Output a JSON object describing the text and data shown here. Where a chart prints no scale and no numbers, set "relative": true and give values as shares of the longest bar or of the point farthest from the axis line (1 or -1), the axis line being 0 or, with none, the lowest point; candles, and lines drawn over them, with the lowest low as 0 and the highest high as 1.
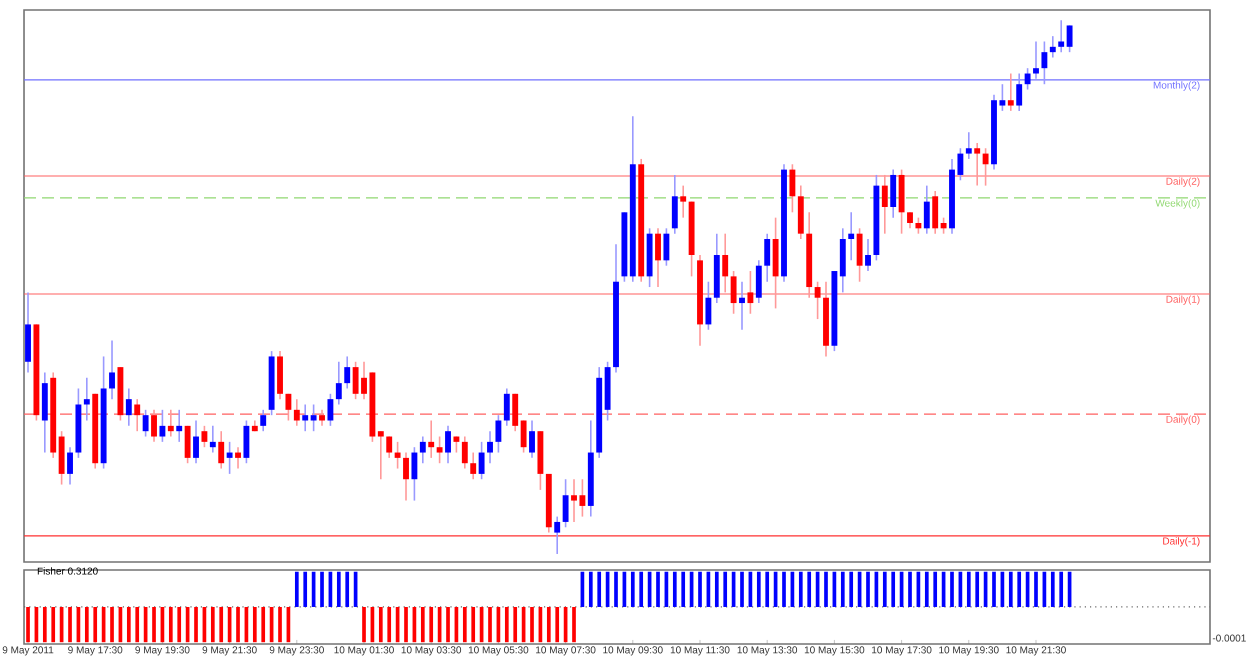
{
  "chart_data": [
    {
      "type": "candlestick",
      "relative": true,
      "tick_labels": false,
      "categories": [
        null,
        null,
        null,
        null,
        null,
        null,
        null,
        null,
        null,
        null,
        null,
        null,
        null,
        null,
        null,
        null,
        null,
        null,
        null,
        null,
        null,
        null,
        null,
        null,
        null,
        null,
        null,
        null,
        null,
        null,
        null,
        null,
        null,
        null,
        null,
        null,
        null,
        null,
        null,
        null,
        null,
        null,
        null,
        null,
        null,
        null,
        null,
        null,
        null,
        null,
        null,
        null,
        null,
        null,
        null,
        null,
        null,
        null,
        null,
        null,
        null,
        null,
        null,
        null,
        null,
        null,
        null,
        null,
        null,
        null,
        null,
        null,
        null,
        null,
        null,
        null,
        null,
        null,
        null,
        null,
        null,
        null,
        null,
        null,
        null,
        null,
        null,
        null,
        null,
        null,
        null,
        null,
        null,
        null,
        null,
        null,
        null,
        null,
        null,
        null,
        null,
        null,
        null,
        null,
        null,
        null,
        null,
        null,
        null,
        null,
        null,
        null,
        null,
        null,
        null,
        null,
        null,
        null,
        null,
        null,
        null,
        null,
        null,
        null,
        null
      ],
      "ohlc": [
        [
          0.36,
          0.49,
          0.34,
          0.43
        ],
        [
          0.43,
          0.43,
          0.25,
          0.26
        ],
        [
          0.25,
          0.34,
          0.19,
          0.32
        ],
        [
          0.33,
          0.34,
          0.18,
          0.19
        ],
        [
          0.22,
          0.23,
          0.13,
          0.15
        ],
        [
          0.15,
          0.2,
          0.13,
          0.19
        ],
        [
          0.19,
          0.31,
          0.18,
          0.28
        ],
        [
          0.28,
          0.33,
          0.25,
          0.29
        ],
        [
          0.3,
          0.3,
          0.16,
          0.17
        ],
        [
          0.17,
          0.37,
          0.16,
          0.31
        ],
        [
          0.31,
          0.4,
          0.29,
          0.34
        ],
        [
          0.35,
          0.35,
          0.25,
          0.26
        ],
        [
          0.26,
          0.31,
          0.24,
          0.29
        ],
        [
          0.28,
          0.29,
          0.23,
          0.26
        ],
        [
          0.23,
          0.27,
          0.22,
          0.26
        ],
        [
          0.26,
          0.27,
          0.21,
          0.22
        ],
        [
          0.22,
          0.27,
          0.21,
          0.24
        ],
        [
          0.24,
          0.27,
          0.22,
          0.23
        ],
        [
          0.23,
          0.27,
          0.21,
          0.24
        ],
        [
          0.24,
          0.24,
          0.17,
          0.18
        ],
        [
          0.18,
          0.25,
          0.17,
          0.22
        ],
        [
          0.23,
          0.24,
          0.2,
          0.21
        ],
        [
          0.2,
          0.24,
          0.19,
          0.21
        ],
        [
          0.21,
          0.23,
          0.16,
          0.17
        ],
        [
          0.18,
          0.21,
          0.15,
          0.19
        ],
        [
          0.19,
          0.2,
          0.16,
          0.18
        ],
        [
          0.18,
          0.25,
          0.17,
          0.24
        ],
        [
          0.24,
          0.25,
          0.23,
          0.23
        ],
        [
          0.24,
          0.27,
          0.23,
          0.26
        ],
        [
          0.27,
          0.38,
          0.26,
          0.37
        ],
        [
          0.37,
          0.38,
          0.29,
          0.3
        ],
        [
          0.3,
          0.3,
          0.25,
          0.27
        ],
        [
          0.27,
          0.29,
          0.24,
          0.25
        ],
        [
          0.25,
          0.28,
          0.23,
          0.26
        ],
        [
          0.25,
          0.28,
          0.23,
          0.26
        ],
        [
          0.26,
          0.27,
          0.24,
          0.25
        ],
        [
          0.25,
          0.3,
          0.24,
          0.29
        ],
        [
          0.29,
          0.36,
          0.28,
          0.32
        ],
        [
          0.32,
          0.37,
          0.31,
          0.35
        ],
        [
          0.35,
          0.36,
          0.29,
          0.3
        ],
        [
          0.33,
          0.36,
          0.29,
          0.3
        ],
        [
          0.34,
          0.34,
          0.21,
          0.22
        ],
        [
          0.23,
          0.23,
          0.14,
          0.22
        ],
        [
          0.22,
          0.22,
          0.18,
          0.19
        ],
        [
          0.19,
          0.21,
          0.16,
          0.18
        ],
        [
          0.18,
          0.19,
          0.1,
          0.14
        ],
        [
          0.14,
          0.2,
          0.1,
          0.19
        ],
        [
          0.19,
          0.22,
          0.17,
          0.21
        ],
        [
          0.21,
          0.25,
          0.18,
          0.2
        ],
        [
          0.2,
          0.22,
          0.17,
          0.19
        ],
        [
          0.19,
          0.24,
          0.17,
          0.23
        ],
        [
          0.22,
          0.22,
          0.19,
          0.21
        ],
        [
          0.21,
          0.22,
          0.16,
          0.17
        ],
        [
          0.17,
          0.19,
          0.14,
          0.15
        ],
        [
          0.15,
          0.21,
          0.14,
          0.19
        ],
        [
          0.19,
          0.23,
          0.17,
          0.21
        ],
        [
          0.21,
          0.26,
          0.19,
          0.25
        ],
        [
          0.25,
          0.31,
          0.24,
          0.3
        ],
        [
          0.3,
          0.3,
          0.23,
          0.24
        ],
        [
          0.25,
          0.25,
          0.19,
          0.2
        ],
        [
          0.19,
          0.25,
          0.18,
          0.23
        ],
        [
          0.23,
          0.23,
          0.12,
          0.15
        ],
        [
          0.15,
          0.15,
          0.04,
          0.05
        ],
        [
          0.04,
          0.07,
          0,
          0.06
        ],
        [
          0.06,
          0.14,
          0.05,
          0.11
        ],
        [
          0.11,
          0.14,
          0.06,
          0.1
        ],
        [
          0.11,
          0.14,
          0.07,
          0.09
        ],
        [
          0.09,
          0.25,
          0.07,
          0.19
        ],
        [
          0.19,
          0.35,
          0.18,
          0.33
        ],
        [
          0.27,
          0.36,
          0.25,
          0.35
        ],
        [
          0.35,
          0.58,
          0.34,
          0.51
        ],
        [
          0.52,
          0.64,
          0.51,
          0.64
        ],
        [
          0.52,
          0.82,
          0.51,
          0.73
        ],
        [
          0.73,
          0.74,
          0.51,
          0.52
        ],
        [
          0.52,
          0.61,
          0.5,
          0.6
        ],
        [
          0.6,
          0.61,
          0.5,
          0.55
        ],
        [
          0.55,
          0.61,
          0.54,
          0.6
        ],
        [
          0.61,
          0.71,
          0.6,
          0.67
        ],
        [
          0.67,
          0.69,
          0.63,
          0.66
        ],
        [
          0.66,
          0.66,
          0.52,
          0.56
        ],
        [
          0.55,
          0.56,
          0.39,
          0.43
        ],
        [
          0.43,
          0.51,
          0.42,
          0.48
        ],
        [
          0.48,
          0.6,
          0.47,
          0.56
        ],
        [
          0.56,
          0.6,
          0.49,
          0.52
        ],
        [
          0.52,
          0.53,
          0.45,
          0.47
        ],
        [
          0.47,
          0.51,
          0.42,
          0.48
        ],
        [
          0.49,
          0.53,
          0.45,
          0.47
        ],
        [
          0.48,
          0.55,
          0.47,
          0.54
        ],
        [
          0.54,
          0.6,
          0.51,
          0.59
        ],
        [
          0.59,
          0.63,
          0.46,
          0.52
        ],
        [
          0.52,
          0.73,
          0.51,
          0.72
        ],
        [
          0.72,
          0.73,
          0.64,
          0.67
        ],
        [
          0.67,
          0.69,
          0.59,
          0.6
        ],
        [
          0.6,
          0.64,
          0.48,
          0.5
        ],
        [
          0.5,
          0.51,
          0.44,
          0.48
        ],
        [
          0.48,
          0.51,
          0.37,
          0.39
        ],
        [
          0.39,
          0.53,
          0.38,
          0.53
        ],
        [
          0.52,
          0.61,
          0.49,
          0.59
        ],
        [
          0.59,
          0.64,
          0.55,
          0.6
        ],
        [
          0.6,
          0.61,
          0.51,
          0.54
        ],
        [
          0.54,
          0.59,
          0.53,
          0.56
        ],
        [
          0.56,
          0.71,
          0.55,
          0.69
        ],
        [
          0.69,
          0.71,
          0.6,
          0.65
        ],
        [
          0.65,
          0.72,
          0.63,
          0.71
        ],
        [
          0.71,
          0.72,
          0.6,
          0.64
        ],
        [
          0.64,
          0.64,
          0.61,
          0.62
        ],
        [
          0.62,
          0.63,
          0.6,
          0.61
        ],
        [
          0.61,
          0.69,
          0.6,
          0.66
        ],
        [
          0.67,
          0.68,
          0.6,
          0.61
        ],
        [
          0.62,
          0.63,
          0.6,
          0.61
        ],
        [
          0.61,
          0.74,
          0.6,
          0.72
        ],
        [
          0.71,
          0.76,
          0.7,
          0.75
        ],
        [
          0.75,
          0.79,
          0.74,
          0.76
        ],
        [
          0.76,
          0.77,
          0.69,
          0.75
        ],
        [
          0.75,
          0.76,
          0.69,
          0.73
        ],
        [
          0.73,
          0.86,
          0.72,
          0.85
        ],
        [
          0.84,
          0.88,
          0.83,
          0.85
        ],
        [
          0.85,
          0.9,
          0.83,
          0.84
        ],
        [
          0.84,
          0.9,
          0.83,
          0.88
        ],
        [
          0.88,
          0.91,
          0.87,
          0.9
        ],
        [
          0.9,
          0.96,
          0.89,
          0.91
        ],
        [
          0.91,
          0.96,
          0.88,
          0.94
        ],
        [
          0.94,
          0.97,
          0.93,
          0.95
        ],
        [
          0.95,
          1,
          0.94,
          0.96
        ],
        [
          0.95,
          0.99,
          0.94,
          0.99
        ]
      ],
      "ref_lines": [
        {
          "axis": "y",
          "value": 0.888,
          "label": "Monthly(2)",
          "color": "#7070ff",
          "line_style": "solid"
        },
        {
          "axis": "y",
          "value": 0.708,
          "label": "Daily(2)",
          "color": "#ff6060",
          "line_style": "solid"
        },
        {
          "axis": "y",
          "value": 0.667,
          "label": "Weekly(0)",
          "color": "#90d870",
          "line_style": "dashed"
        },
        {
          "axis": "y",
          "value": 0.487,
          "label": "Daily(1)",
          "color": "#ff6060",
          "line_style": "solid"
        },
        {
          "axis": "y",
          "value": 0.262,
          "label": "Daily(0)",
          "color": "#ff6060",
          "line_style": "dashed"
        },
        {
          "axis": "y",
          "value": 0.034,
          "label": "Daily(-1)",
          "color": "#ff3030",
          "line_style": "solid"
        }
      ]
    },
    {
      "type": "bar",
      "relative": true,
      "title": "Fisher 0.3120",
      "tick_labels": "x",
      "annotations": [
        "-0.0001"
      ],
      "ref_lines": [
        {
          "axis": "y",
          "value": 0,
          "color": "#666666",
          "line_style": "dotted"
        }
      ],
      "categories": [
        "9 May 2011",
        null,
        null,
        null,
        null,
        null,
        null,
        null,
        "9 May 17:30",
        null,
        null,
        null,
        null,
        null,
        null,
        null,
        "9 May 19:30",
        null,
        null,
        null,
        null,
        null,
        null,
        null,
        "9 May 21:30",
        null,
        null,
        null,
        null,
        null,
        null,
        null,
        "9 May 23:30",
        null,
        null,
        null,
        null,
        null,
        null,
        null,
        "10 May 01:30",
        null,
        null,
        null,
        null,
        null,
        null,
        null,
        "10 May 03:30",
        null,
        null,
        null,
        null,
        null,
        null,
        null,
        "10 May 05:30",
        null,
        null,
        null,
        null,
        null,
        null,
        null,
        "10 May 07:30",
        null,
        null,
        null,
        null,
        null,
        null,
        null,
        "10 May 09:30",
        null,
        null,
        null,
        null,
        null,
        null,
        null,
        "10 May 11:30",
        null,
        null,
        null,
        null,
        null,
        null,
        null,
        "10 May 13:30",
        null,
        null,
        null,
        null,
        null,
        null,
        null,
        "10 May 15:30",
        null,
        null,
        null,
        null,
        null,
        null,
        null,
        "10 May 17:30",
        null,
        null,
        null,
        null,
        null,
        null,
        null,
        "10 May 19:30",
        null,
        null,
        null,
        null,
        null,
        null,
        null,
        "10 May 21:30",
        null,
        null,
        null,
        null
      ],
      "values": [
        -1,
        -1,
        -1,
        -1,
        -1,
        -1,
        -1,
        -1,
        -1,
        -1,
        -1,
        -1,
        -1,
        -1,
        -1,
        -1,
        -1,
        -1,
        -1,
        -1,
        -1,
        -1,
        -1,
        -1,
        -1,
        -1,
        -1,
        -1,
        -1,
        -1,
        -1,
        -1,
        1,
        1,
        1,
        1,
        1,
        1,
        1,
        1,
        -1,
        -1,
        -1,
        -1,
        -1,
        -1,
        -1,
        -1,
        -1,
        -1,
        -1,
        -1,
        -1,
        -1,
        -1,
        -1,
        -1,
        -1,
        -1,
        -1,
        -1,
        -1,
        -1,
        -1,
        -1,
        -1,
        1,
        1,
        1,
        1,
        1,
        1,
        1,
        1,
        1,
        1,
        1,
        1,
        1,
        1,
        1,
        1,
        1,
        1,
        1,
        1,
        1,
        1,
        1,
        1,
        1,
        1,
        1,
        1,
        1,
        1,
        1,
        1,
        1,
        1,
        1,
        1,
        1,
        1,
        1,
        1,
        1,
        1,
        1,
        1,
        1,
        1,
        1,
        1,
        1,
        1,
        1,
        1,
        1,
        1,
        1,
        1,
        1,
        1,
        1
      ]
    }
  ]
}
